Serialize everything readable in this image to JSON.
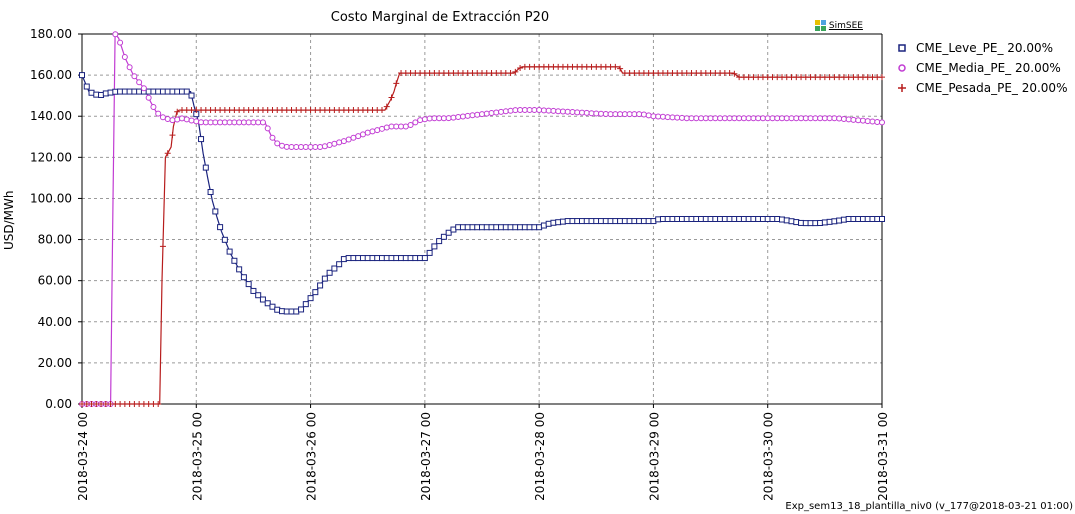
{
  "chart_data": {
    "type": "line",
    "title": "Costo Marginal de Extracción P20",
    "xlabel": "",
    "ylabel": "USD/MWh",
    "ylim": [
      0,
      180
    ],
    "yticks": [
      "0.00",
      "20.00",
      "40.00",
      "60.00",
      "80.00",
      "100.00",
      "120.00",
      "140.00",
      "160.00",
      "180.00"
    ],
    "xticks": [
      "2018-03-24 00",
      "2018-03-25 00",
      "2018-03-26 00",
      "2018-03-27 00",
      "2018-03-28 00",
      "2018-03-29 00",
      "2018-03-30 00",
      "2018-03-31 00"
    ],
    "x_unit": "days since 2018-03-24 00:00",
    "grid": true,
    "legend_position": "right",
    "series": [
      {
        "name": "CME_Leve_PE_ 20.00%",
        "color": "#1a237e",
        "marker": "square",
        "points": [
          [
            0,
            160
          ],
          [
            0.06,
            152
          ],
          [
            0.1,
            151
          ],
          [
            0.15,
            150
          ],
          [
            0.2,
            151
          ],
          [
            0.3,
            152
          ],
          [
            0.5,
            152
          ],
          [
            0.8,
            152
          ],
          [
            0.95,
            152
          ],
          [
            0.98,
            145
          ],
          [
            1.02,
            137
          ],
          [
            1.06,
            122
          ],
          [
            1.1,
            110
          ],
          [
            1.14,
            99
          ],
          [
            1.18,
            91
          ],
          [
            1.22,
            84
          ],
          [
            1.3,
            73
          ],
          [
            1.4,
            63
          ],
          [
            1.5,
            55
          ],
          [
            1.6,
            50
          ],
          [
            1.7,
            46
          ],
          [
            1.76,
            45
          ],
          [
            1.9,
            45
          ],
          [
            1.95,
            48
          ],
          [
            2.05,
            55
          ],
          [
            2.15,
            63
          ],
          [
            2.25,
            68
          ],
          [
            2.3,
            71
          ],
          [
            2.5,
            71
          ],
          [
            2.8,
            71
          ],
          [
            3.0,
            71
          ],
          [
            3.05,
            74
          ],
          [
            3.1,
            78
          ],
          [
            3.2,
            83
          ],
          [
            3.28,
            86
          ],
          [
            3.5,
            86
          ],
          [
            3.8,
            86
          ],
          [
            4.0,
            86
          ],
          [
            4.1,
            88
          ],
          [
            4.25,
            89
          ],
          [
            5.0,
            89
          ],
          [
            5.05,
            90
          ],
          [
            5.5,
            90
          ],
          [
            6.1,
            90
          ],
          [
            6.2,
            89
          ],
          [
            6.3,
            88
          ],
          [
            6.45,
            88
          ],
          [
            6.6,
            89
          ],
          [
            6.7,
            90
          ],
          [
            7.0,
            90
          ]
        ]
      },
      {
        "name": "CME_Media_PE_ 20.00%",
        "color": "#c13bd3",
        "marker": "circle",
        "points": [
          [
            0,
            0
          ],
          [
            0.25,
            0
          ],
          [
            0.27,
            95
          ],
          [
            0.29,
            180
          ],
          [
            0.32,
            178
          ],
          [
            0.38,
            168
          ],
          [
            0.45,
            160
          ],
          [
            0.55,
            153
          ],
          [
            0.6,
            147
          ],
          [
            0.65,
            142
          ],
          [
            0.72,
            139
          ],
          [
            0.8,
            138
          ],
          [
            0.88,
            139
          ],
          [
            0.95,
            138
          ],
          [
            1.05,
            137
          ],
          [
            1.3,
            137
          ],
          [
            1.6,
            137
          ],
          [
            1.66,
            130
          ],
          [
            1.72,
            126
          ],
          [
            1.8,
            125
          ],
          [
            1.9,
            125
          ],
          [
            2.1,
            125
          ],
          [
            2.3,
            128
          ],
          [
            2.5,
            132
          ],
          [
            2.7,
            135
          ],
          [
            2.85,
            135
          ],
          [
            2.95,
            138
          ],
          [
            3.05,
            139
          ],
          [
            3.2,
            139
          ],
          [
            3.5,
            141
          ],
          [
            3.8,
            143
          ],
          [
            4.0,
            143
          ],
          [
            4.3,
            142
          ],
          [
            4.6,
            141
          ],
          [
            4.9,
            141
          ],
          [
            5.0,
            140
          ],
          [
            5.3,
            139
          ],
          [
            5.7,
            139
          ],
          [
            6.0,
            139
          ],
          [
            6.3,
            139
          ],
          [
            6.6,
            139
          ],
          [
            6.8,
            138
          ],
          [
            7.0,
            137
          ]
        ]
      },
      {
        "name": "CME_Pesada_PE_ 20.00%",
        "color": "#b71c1c",
        "marker": "plus",
        "points": [
          [
            0,
            0
          ],
          [
            0.68,
            0
          ],
          [
            0.7,
            60
          ],
          [
            0.73,
            120
          ],
          [
            0.78,
            125
          ],
          [
            0.8,
            135
          ],
          [
            0.83,
            142
          ],
          [
            0.85,
            143
          ],
          [
            1.0,
            143
          ],
          [
            1.5,
            143
          ],
          [
            2.0,
            143
          ],
          [
            2.5,
            143
          ],
          [
            2.65,
            143
          ],
          [
            2.7,
            148
          ],
          [
            2.73,
            152
          ],
          [
            2.75,
            156
          ],
          [
            2.78,
            161
          ],
          [
            3.0,
            161
          ],
          [
            3.5,
            161
          ],
          [
            3.78,
            161
          ],
          [
            3.82,
            163
          ],
          [
            3.85,
            164
          ],
          [
            4.0,
            164
          ],
          [
            4.5,
            164
          ],
          [
            4.7,
            164
          ],
          [
            4.73,
            161
          ],
          [
            5.0,
            161
          ],
          [
            5.5,
            161
          ],
          [
            5.7,
            161
          ],
          [
            5.75,
            159
          ],
          [
            6.0,
            159
          ],
          [
            6.5,
            159
          ],
          [
            7.0,
            159
          ]
        ]
      }
    ]
  },
  "logo": {
    "text": "SimSEE"
  },
  "footer": "Exp_sem13_18_plantilla_niv0 (v_177@2018-03-21 01:00)"
}
